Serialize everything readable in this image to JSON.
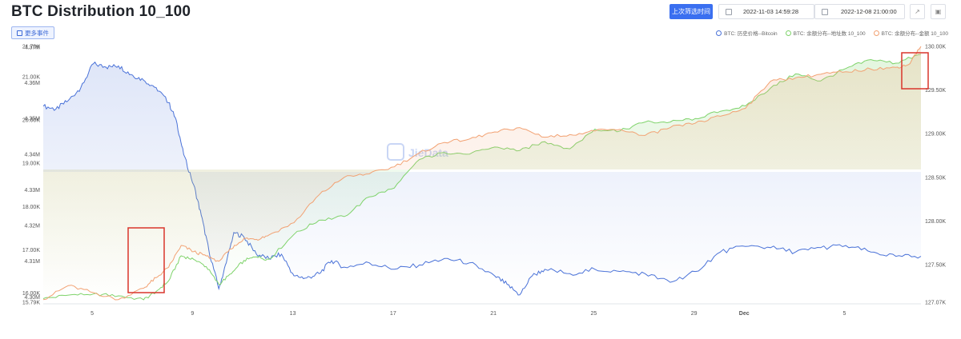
{
  "header": {
    "title": "BTC Distribution 10_100",
    "events_button": "更多事件",
    "filter_button": "上次筛选时间",
    "start_date": "2022-11-03 14:59:28",
    "end_date": "2022-12-08 21:00:00"
  },
  "chart_data": {
    "type": "line",
    "title": "BTC Distribution 10_100",
    "xlabel": "",
    "x_ticks": [
      "5",
      "9",
      "13",
      "17",
      "21",
      "25",
      "29",
      "Dec",
      "5"
    ],
    "x_range": [
      "2022-11-03",
      "2022-12-08"
    ],
    "axes": {
      "left_outer": {
        "ticks": [
          "15.79K",
          "16.00K",
          "17.00K",
          "18.00K",
          "19.00K",
          "20.00K",
          "21.00K",
          "21.70K"
        ],
        "ylim": [
          15790,
          21700
        ]
      },
      "left_inner": {
        "ticks": [
          "4.30M",
          "4.31M",
          "4.32M",
          "4.33M",
          "4.34M",
          "4.35M",
          "4.36M",
          "4.37M"
        ],
        "ylim": [
          4.2985,
          4.3702
        ]
      },
      "right": {
        "ticks": [
          "127.07K",
          "127.50K",
          "128.00K",
          "128.50K",
          "129.00K",
          "129.50K",
          "130.00K"
        ],
        "ylim": [
          127070,
          130000
        ]
      }
    },
    "series": [
      {
        "name": "BTC: 历史价格--Bitcoin",
        "color": "#4a72d8",
        "axis": "left_outer",
        "x": [
          3,
          3.5,
          4,
          4.5,
          5,
          5.5,
          6,
          6.5,
          7,
          7.5,
          8,
          8.3,
          8.6,
          9,
          9.3,
          9.6,
          10,
          10.3,
          10.6,
          11,
          11.5,
          12,
          12.5,
          13,
          13.5,
          14,
          14.5,
          15,
          16,
          17,
          18,
          19,
          20,
          21,
          21.5,
          22,
          22.5,
          23,
          24,
          25,
          26,
          27,
          28,
          29,
          30,
          31,
          32,
          33,
          34,
          35,
          36,
          37,
          38
        ],
        "values": [
          20320,
          20250,
          20450,
          20750,
          21300,
          21220,
          21250,
          21050,
          20920,
          20750,
          20400,
          20000,
          19200,
          18500,
          17800,
          17000,
          16100,
          16700,
          17400,
          17300,
          16900,
          16800,
          16900,
          16400,
          16350,
          16450,
          16750,
          16600,
          16700,
          16550,
          16650,
          16800,
          16700,
          16400,
          16200,
          15960,
          16400,
          16550,
          16450,
          16550,
          16500,
          16450,
          16250,
          16500,
          16950,
          17080,
          17050,
          16950,
          17050,
          17100,
          16950,
          16850,
          16850
        ]
      },
      {
        "name": "BTC: 余额分布--地址数 10_100",
        "color": "#7fd36b",
        "axis": "left_inner",
        "x": [
          3,
          4,
          5,
          6,
          7,
          7.5,
          8,
          8.5,
          9,
          9.5,
          10,
          10.5,
          11,
          11.5,
          12,
          13,
          14,
          15,
          16,
          17,
          18,
          19,
          20,
          21,
          22,
          23,
          24,
          25,
          26,
          27,
          28,
          29,
          30,
          31,
          32,
          33,
          34,
          35,
          36,
          37,
          38
        ],
        "values": [
          4.2995,
          4.3005,
          4.3008,
          4.3003,
          4.2992,
          4.3015,
          4.3045,
          4.3115,
          4.3105,
          4.3085,
          4.3035,
          4.3065,
          4.3102,
          4.3112,
          4.3105,
          4.3175,
          4.3215,
          4.3225,
          4.328,
          4.3305,
          4.3385,
          4.3405,
          4.34,
          4.342,
          4.341,
          4.3435,
          4.3415,
          4.347,
          4.3465,
          4.349,
          4.349,
          4.35,
          4.352,
          4.3535,
          4.3585,
          4.3625,
          4.3605,
          4.364,
          4.3665,
          4.3655,
          4.368
        ]
      },
      {
        "name": "BTC: 余额分布--金额 10_100",
        "color": "#f2a172",
        "axis": "right",
        "x": [
          3,
          4,
          5,
          6,
          7,
          7.5,
          8,
          8.5,
          9,
          9.5,
          10,
          10.5,
          11,
          11.5,
          12,
          13,
          14,
          15,
          16,
          17,
          18,
          19,
          20,
          21,
          22,
          23,
          24,
          25,
          26,
          27,
          28,
          29,
          30,
          31,
          32,
          33,
          34,
          35,
          36,
          37,
          37.5,
          38
        ],
        "values": [
          127100,
          127260,
          127180,
          127100,
          127230,
          127350,
          127470,
          127720,
          127650,
          127600,
          127540,
          127680,
          127800,
          127790,
          127840,
          127980,
          128300,
          128500,
          128540,
          128620,
          128780,
          128900,
          128940,
          129020,
          129070,
          128960,
          128990,
          129030,
          129050,
          128980,
          129070,
          129120,
          129200,
          129290,
          129600,
          129640,
          129680,
          129710,
          129740,
          129760,
          129790,
          130000
        ]
      }
    ],
    "annotations": [
      "red-box-nov-8",
      "red-box-dec-8"
    ],
    "legend_placement": "top-right",
    "watermark": "JieData"
  }
}
